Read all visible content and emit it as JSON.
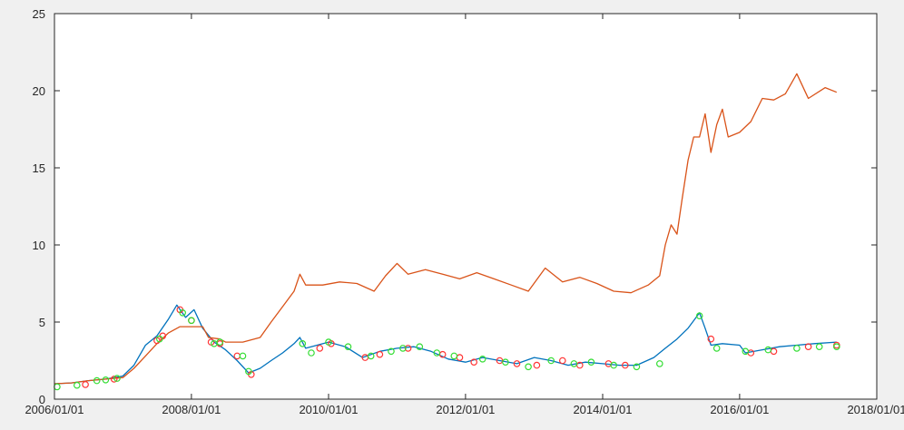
{
  "chart_data": {
    "type": "line",
    "title": "",
    "xlabel": "",
    "ylabel": "",
    "xlim": [
      "2006/01/01",
      "2018/01/01"
    ],
    "ylim": [
      0,
      25
    ],
    "x_ticks": [
      "2006/01/01",
      "2008/01/01",
      "2010/01/01",
      "2012/01/01",
      "2014/01/01",
      "2016/01/01",
      "2018/01/01"
    ],
    "y_ticks": [
      "0",
      "5",
      "10",
      "15",
      "20",
      "25"
    ],
    "grid": false,
    "legend": "none",
    "series": [
      {
        "color": "#0072bd",
        "style": "line",
        "points": [
          [
            "2006/01/01",
            1.0
          ],
          [
            "2006/04/01",
            1.05
          ],
          [
            "2006/07/01",
            1.2
          ],
          [
            "2006/10/01",
            1.3
          ],
          [
            "2007/01/01",
            1.5
          ],
          [
            "2007/03/01",
            2.2
          ],
          [
            "2007/05/01",
            3.5
          ],
          [
            "2007/07/01",
            4.1
          ],
          [
            "2007/09/01",
            5.2
          ],
          [
            "2007/10/15",
            6.1
          ],
          [
            "2007/12/01",
            5.3
          ],
          [
            "2008/01/15",
            5.8
          ],
          [
            "2008/03/01",
            4.6
          ],
          [
            "2008/05/01",
            3.7
          ],
          [
            "2008/07/01",
            3.2
          ],
          [
            "2008/09/01",
            2.5
          ],
          [
            "2008/11/01",
            1.7
          ],
          [
            "2009/01/01",
            2.0
          ],
          [
            "2009/03/01",
            2.5
          ],
          [
            "2009/05/01",
            3.0
          ],
          [
            "2009/07/01",
            3.6
          ],
          [
            "2009/08/01",
            4.0
          ],
          [
            "2009/09/01",
            3.3
          ],
          [
            "2009/11/01",
            3.5
          ],
          [
            "2010/01/01",
            3.7
          ],
          [
            "2010/04/01",
            3.4
          ],
          [
            "2010/07/01",
            2.7
          ],
          [
            "2010/10/01",
            3.1
          ],
          [
            "2011/01/01",
            3.3
          ],
          [
            "2011/04/01",
            3.4
          ],
          [
            "2011/07/01",
            3.1
          ],
          [
            "2011/10/01",
            2.6
          ],
          [
            "2012/01/01",
            2.4
          ],
          [
            "2012/04/01",
            2.7
          ],
          [
            "2012/07/01",
            2.5
          ],
          [
            "2012/10/01",
            2.3
          ],
          [
            "2013/01/01",
            2.7
          ],
          [
            "2013/04/01",
            2.5
          ],
          [
            "2013/07/01",
            2.2
          ],
          [
            "2013/10/01",
            2.4
          ],
          [
            "2014/01/01",
            2.3
          ],
          [
            "2014/04/01",
            2.2
          ],
          [
            "2014/07/01",
            2.2
          ],
          [
            "2014/10/01",
            2.7
          ],
          [
            "2014/12/01",
            3.3
          ],
          [
            "2015/02/01",
            3.9
          ],
          [
            "2015/04/01",
            4.6
          ],
          [
            "2015/06/01",
            5.6
          ],
          [
            "2015/07/01",
            4.6
          ],
          [
            "2015/08/01",
            3.5
          ],
          [
            "2015/10/01",
            3.6
          ],
          [
            "2016/01/01",
            3.5
          ],
          [
            "2016/02/01",
            3.0
          ],
          [
            "2016/05/01",
            3.2
          ],
          [
            "2016/08/01",
            3.4
          ],
          [
            "2016/11/01",
            3.5
          ],
          [
            "2017/02/01",
            3.6
          ],
          [
            "2017/06/01",
            3.7
          ]
        ]
      },
      {
        "color": "#d95319",
        "style": "line",
        "points": [
          [
            "2006/01/01",
            1.0
          ],
          [
            "2006/04/01",
            1.05
          ],
          [
            "2006/07/01",
            1.2
          ],
          [
            "2006/10/01",
            1.3
          ],
          [
            "2007/01/01",
            1.4
          ],
          [
            "2007/03/01",
            2.0
          ],
          [
            "2007/05/01",
            2.8
          ],
          [
            "2007/07/01",
            3.6
          ],
          [
            "2007/09/01",
            4.3
          ],
          [
            "2007/11/01",
            4.7
          ],
          [
            "2008/01/01",
            4.7
          ],
          [
            "2008/03/01",
            4.7
          ],
          [
            "2008/04/01",
            4.0
          ],
          [
            "2008/06/01",
            3.9
          ],
          [
            "2008/07/01",
            3.7
          ],
          [
            "2008/10/01",
            3.7
          ],
          [
            "2009/01/01",
            4.0
          ],
          [
            "2009/03/01",
            5.0
          ],
          [
            "2009/05/01",
            6.0
          ],
          [
            "2009/07/01",
            7.0
          ],
          [
            "2009/08/01",
            8.1
          ],
          [
            "2009/09/01",
            7.4
          ],
          [
            "2009/12/01",
            7.4
          ],
          [
            "2010/03/01",
            7.6
          ],
          [
            "2010/06/01",
            7.5
          ],
          [
            "2010/09/01",
            7.0
          ],
          [
            "2010/11/01",
            8.0
          ],
          [
            "2011/01/01",
            8.8
          ],
          [
            "2011/03/01",
            8.1
          ],
          [
            "2011/06/01",
            8.4
          ],
          [
            "2011/09/01",
            8.1
          ],
          [
            "2011/12/01",
            7.8
          ],
          [
            "2012/03/01",
            8.2
          ],
          [
            "2012/06/01",
            7.8
          ],
          [
            "2012/09/01",
            7.4
          ],
          [
            "2012/12/01",
            7.0
          ],
          [
            "2013/03/01",
            8.5
          ],
          [
            "2013/06/01",
            7.6
          ],
          [
            "2013/09/01",
            7.9
          ],
          [
            "2013/12/01",
            7.5
          ],
          [
            "2014/03/01",
            7.0
          ],
          [
            "2014/06/01",
            6.9
          ],
          [
            "2014/09/01",
            7.4
          ],
          [
            "2014/11/01",
            8.0
          ],
          [
            "2014/12/01",
            10.0
          ],
          [
            "2015/01/01",
            11.3
          ],
          [
            "2015/02/01",
            10.7
          ],
          [
            "2015/03/01",
            13.0
          ],
          [
            "2015/04/01",
            15.5
          ],
          [
            "2015/05/01",
            17.0
          ],
          [
            "2015/06/01",
            17.0
          ],
          [
            "2015/07/01",
            18.5
          ],
          [
            "2015/08/01",
            16.0
          ],
          [
            "2015/09/01",
            17.8
          ],
          [
            "2015/10/01",
            18.8
          ],
          [
            "2015/11/01",
            17.0
          ],
          [
            "2016/01/01",
            17.3
          ],
          [
            "2016/03/01",
            18.0
          ],
          [
            "2016/05/01",
            19.5
          ],
          [
            "2016/07/01",
            19.4
          ],
          [
            "2016/09/01",
            19.8
          ],
          [
            "2016/11/01",
            21.1
          ],
          [
            "2017/01/01",
            19.5
          ],
          [
            "2017/04/01",
            20.2
          ],
          [
            "2017/06/01",
            19.9
          ]
        ]
      },
      {
        "color": "#ff3333",
        "style": "markers",
        "points": [
          [
            "2006/06/15",
            0.95
          ],
          [
            "2006/11/15",
            1.3
          ],
          [
            "2007/07/01",
            3.8
          ],
          [
            "2007/08/01",
            4.1
          ],
          [
            "2007/11/01",
            5.8
          ],
          [
            "2008/01/01",
            5.1
          ],
          [
            "2008/04/15",
            3.7
          ],
          [
            "2008/06/01",
            3.6
          ],
          [
            "2008/09/01",
            2.8
          ],
          [
            "2008/11/15",
            1.6
          ],
          [
            "2009/11/15",
            3.3
          ],
          [
            "2010/01/15",
            3.6
          ],
          [
            "2010/07/15",
            2.7
          ],
          [
            "2010/10/01",
            2.9
          ],
          [
            "2011/03/01",
            3.3
          ],
          [
            "2011/09/01",
            2.9
          ],
          [
            "2011/12/01",
            2.7
          ],
          [
            "2012/02/15",
            2.4
          ],
          [
            "2012/07/01",
            2.5
          ],
          [
            "2012/10/01",
            2.3
          ],
          [
            "2013/01/15",
            2.2
          ],
          [
            "2013/06/01",
            2.5
          ],
          [
            "2013/09/01",
            2.2
          ],
          [
            "2014/02/01",
            2.3
          ],
          [
            "2014/05/01",
            2.2
          ],
          [
            "2015/08/01",
            3.9
          ],
          [
            "2016/03/01",
            3.0
          ],
          [
            "2016/07/01",
            3.1
          ],
          [
            "2017/01/01",
            3.4
          ],
          [
            "2017/06/01",
            3.5
          ]
        ]
      },
      {
        "color": "#33dd33",
        "style": "markers",
        "points": [
          [
            "2006/01/15",
            0.8
          ],
          [
            "2006/05/01",
            0.9
          ],
          [
            "2006/08/15",
            1.2
          ],
          [
            "2006/10/01",
            1.25
          ],
          [
            "2006/12/01",
            1.35
          ],
          [
            "2007/07/15",
            3.9
          ],
          [
            "2007/11/15",
            5.6
          ],
          [
            "2008/01/01",
            5.1
          ],
          [
            "2008/05/01",
            3.6
          ],
          [
            "2008/06/01",
            3.7
          ],
          [
            "2008/10/01",
            2.8
          ],
          [
            "2008/11/01",
            1.8
          ],
          [
            "2009/08/15",
            3.6
          ],
          [
            "2009/10/01",
            3.0
          ],
          [
            "2010/01/01",
            3.7
          ],
          [
            "2010/04/15",
            3.4
          ],
          [
            "2010/08/15",
            2.8
          ],
          [
            "2010/12/01",
            3.1
          ],
          [
            "2011/02/01",
            3.3
          ],
          [
            "2011/05/01",
            3.4
          ],
          [
            "2011/08/01",
            3.0
          ],
          [
            "2011/11/01",
            2.8
          ],
          [
            "2012/04/01",
            2.6
          ],
          [
            "2012/08/01",
            2.4
          ],
          [
            "2012/12/01",
            2.1
          ],
          [
            "2013/04/01",
            2.5
          ],
          [
            "2013/08/01",
            2.3
          ],
          [
            "2013/11/01",
            2.4
          ],
          [
            "2014/03/01",
            2.2
          ],
          [
            "2014/07/01",
            2.1
          ],
          [
            "2014/11/01",
            2.3
          ],
          [
            "2015/06/01",
            5.4
          ],
          [
            "2015/09/01",
            3.3
          ],
          [
            "2016/02/01",
            3.1
          ],
          [
            "2016/06/01",
            3.2
          ],
          [
            "2016/11/01",
            3.3
          ],
          [
            "2017/03/01",
            3.4
          ],
          [
            "2017/06/01",
            3.4
          ]
        ]
      }
    ]
  }
}
